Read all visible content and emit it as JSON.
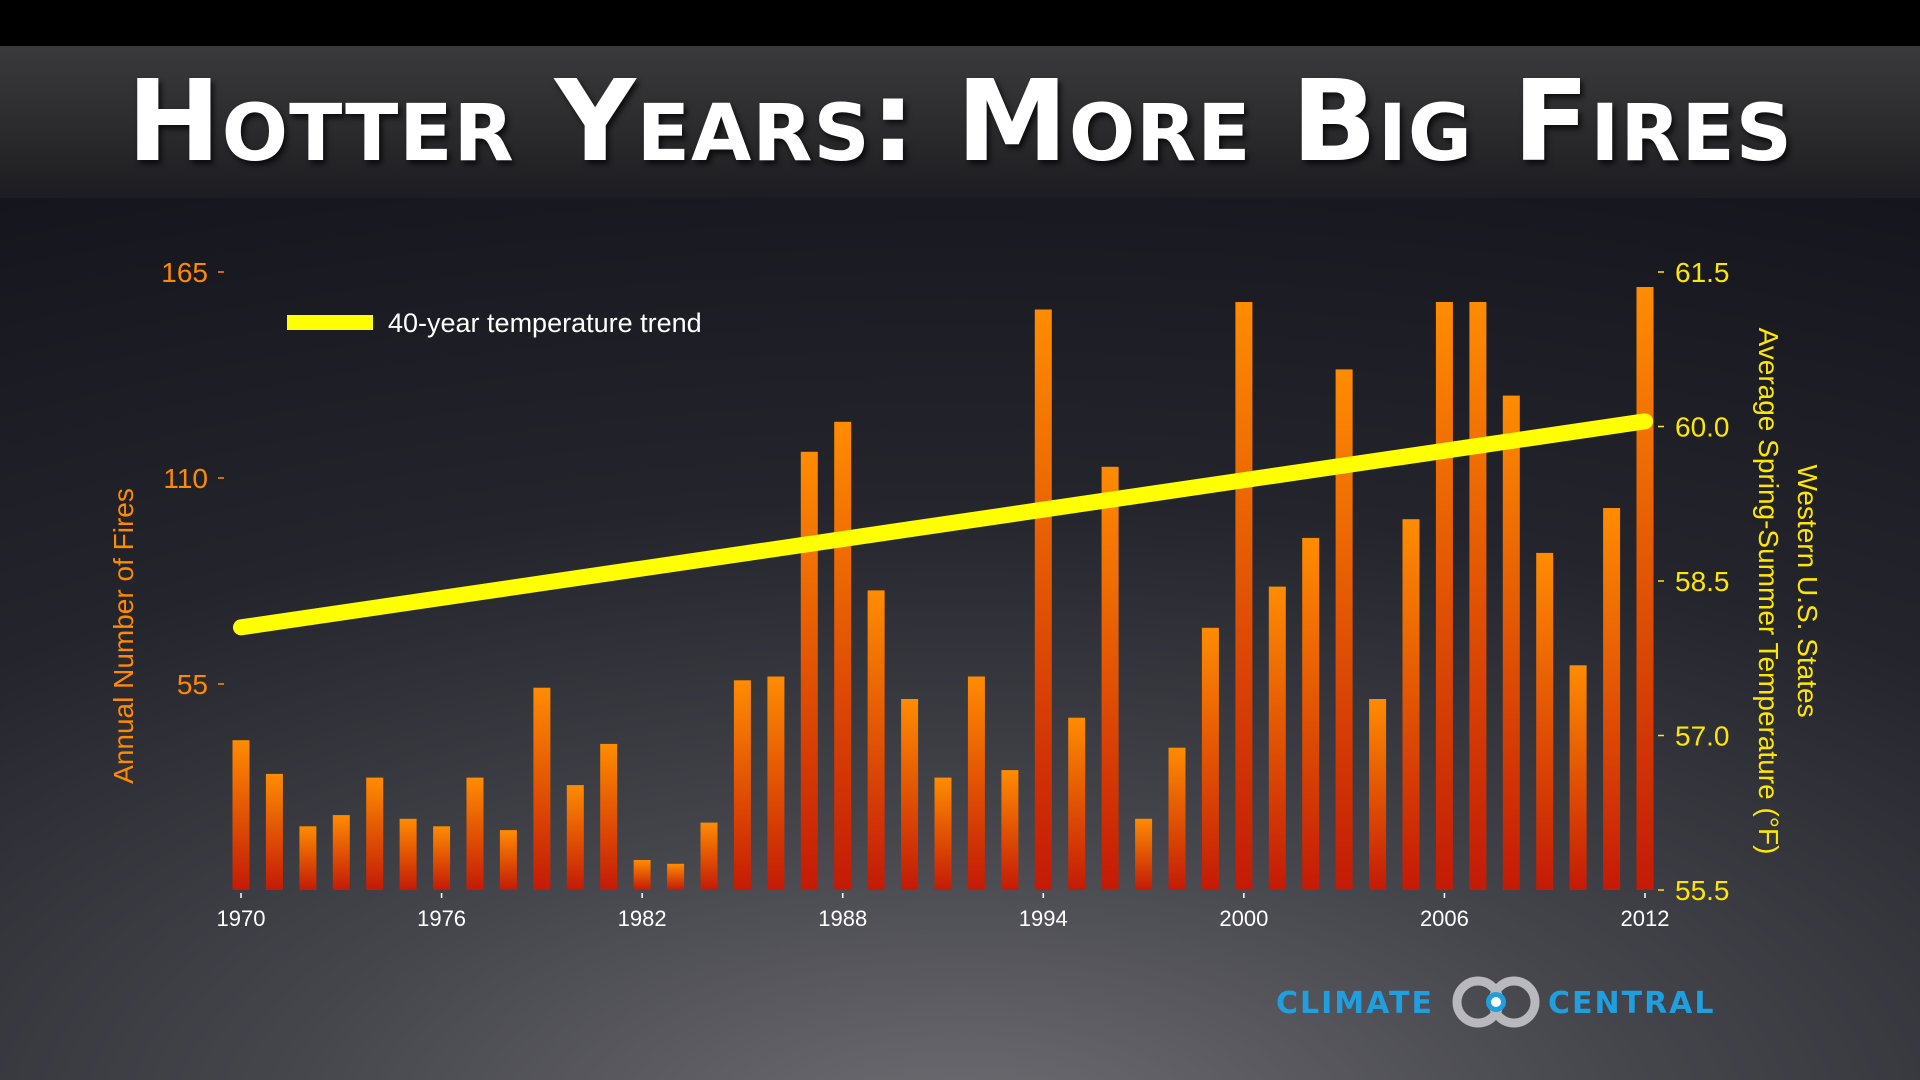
{
  "slide": {
    "title": "Hotter Years: More Big Fires"
  },
  "logo": {
    "left_text": "CLIMATE",
    "right_text": "CENTRAL",
    "icon": "climate-central-rings-icon"
  },
  "colors": {
    "bar_top": "#ff8c00",
    "bar_bottom": "#c41a06",
    "trend_line": "#ffff00",
    "left_axis": "#ff8a00",
    "right_axis": "#ffe600",
    "x_axis": "#ffffff"
  },
  "chart_data": {
    "type": "bar",
    "title": "Hotter Years: More Big Fires",
    "x": [
      1970,
      1971,
      1972,
      1973,
      1974,
      1975,
      1976,
      1977,
      1978,
      1979,
      1980,
      1981,
      1982,
      1983,
      1984,
      1985,
      1986,
      1987,
      1988,
      1989,
      1990,
      1991,
      1992,
      1993,
      1994,
      1995,
      1996,
      1997,
      1998,
      1999,
      2000,
      2001,
      2002,
      2003,
      2004,
      2005,
      2006,
      2007,
      2008,
      2009,
      2010,
      2011,
      2012
    ],
    "x_tick_labels": [
      "1970",
      "1976",
      "1982",
      "1988",
      "1994",
      "2000",
      "2006",
      "2012"
    ],
    "series": [
      {
        "name": "Annual Number of Fires",
        "axis": "left",
        "values": [
          40,
          31,
          17,
          20,
          30,
          19,
          17,
          30,
          16,
          54,
          28,
          39,
          8,
          7,
          18,
          56,
          57,
          117,
          125,
          80,
          51,
          30,
          57,
          32,
          155,
          46,
          113,
          19,
          38,
          70,
          157,
          81,
          94,
          139,
          51,
          99,
          157,
          157,
          132,
          90,
          60,
          102,
          161
        ]
      },
      {
        "name": "40-year temperature trend",
        "axis": "right",
        "type": "line",
        "points": [
          [
            1970,
            58.05
          ],
          [
            2012,
            60.05
          ]
        ]
      }
    ],
    "left_axis": {
      "label": "Annual Number of Fires",
      "ticks": [
        55,
        110,
        165
      ],
      "range": [
        0,
        165
      ]
    },
    "right_axis": {
      "label_line1": "Western U.S. States",
      "label_line2": "Average Spring-Summer Temperature (°F)",
      "ticks": [
        "55.5",
        "57.0",
        "58.5",
        "60.0",
        "61.5"
      ],
      "range": [
        55.5,
        61.5
      ]
    },
    "legend": {
      "label": "40-year temperature trend",
      "position": "top-left"
    }
  }
}
